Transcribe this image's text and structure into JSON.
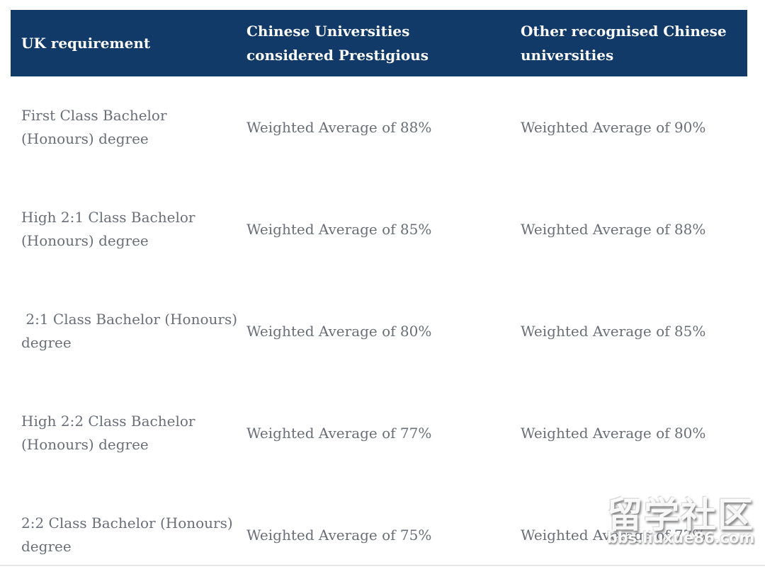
{
  "table": {
    "columns": [
      {
        "label": "UK requirement"
      },
      {
        "label": "Chinese Universities\nconsidered Prestigious"
      },
      {
        "label": "Other recognised Chinese\nuniversities"
      }
    ],
    "rows": [
      {
        "requirement": "First Class Bachelor\n(Honours) degree",
        "prestigious": "Weighted Average of 88%",
        "other": "Weighted Average of 90%"
      },
      {
        "requirement": "High 2:1 Class Bachelor\n(Honours) degree",
        "prestigious": "Weighted Average of 85%",
        "other": "Weighted Average of 88%"
      },
      {
        "requirement": " 2:1 Class Bachelor (Honours)\ndegree",
        "prestigious": "Weighted Average of 80%",
        "other": "Weighted Average of 85%"
      },
      {
        "requirement": "High 2:2 Class Bachelor\n(Honours) degree",
        "prestigious": "Weighted Average of 77%",
        "other": "Weighted Average of 80%"
      },
      {
        "requirement": "2:2 Class Bachelor (Honours)\ndegree",
        "prestigious": "Weighted Average of 75%",
        "other": "Weighted Average of 77%"
      }
    ]
  },
  "watermark": {
    "text": "留学社区",
    "domain": "bbs.liuxue86.com"
  },
  "colors": {
    "header_bg": "#123A68",
    "header_text": "#FBFBFB",
    "body_text": "#696E78",
    "divider": "#E6E7E8"
  }
}
